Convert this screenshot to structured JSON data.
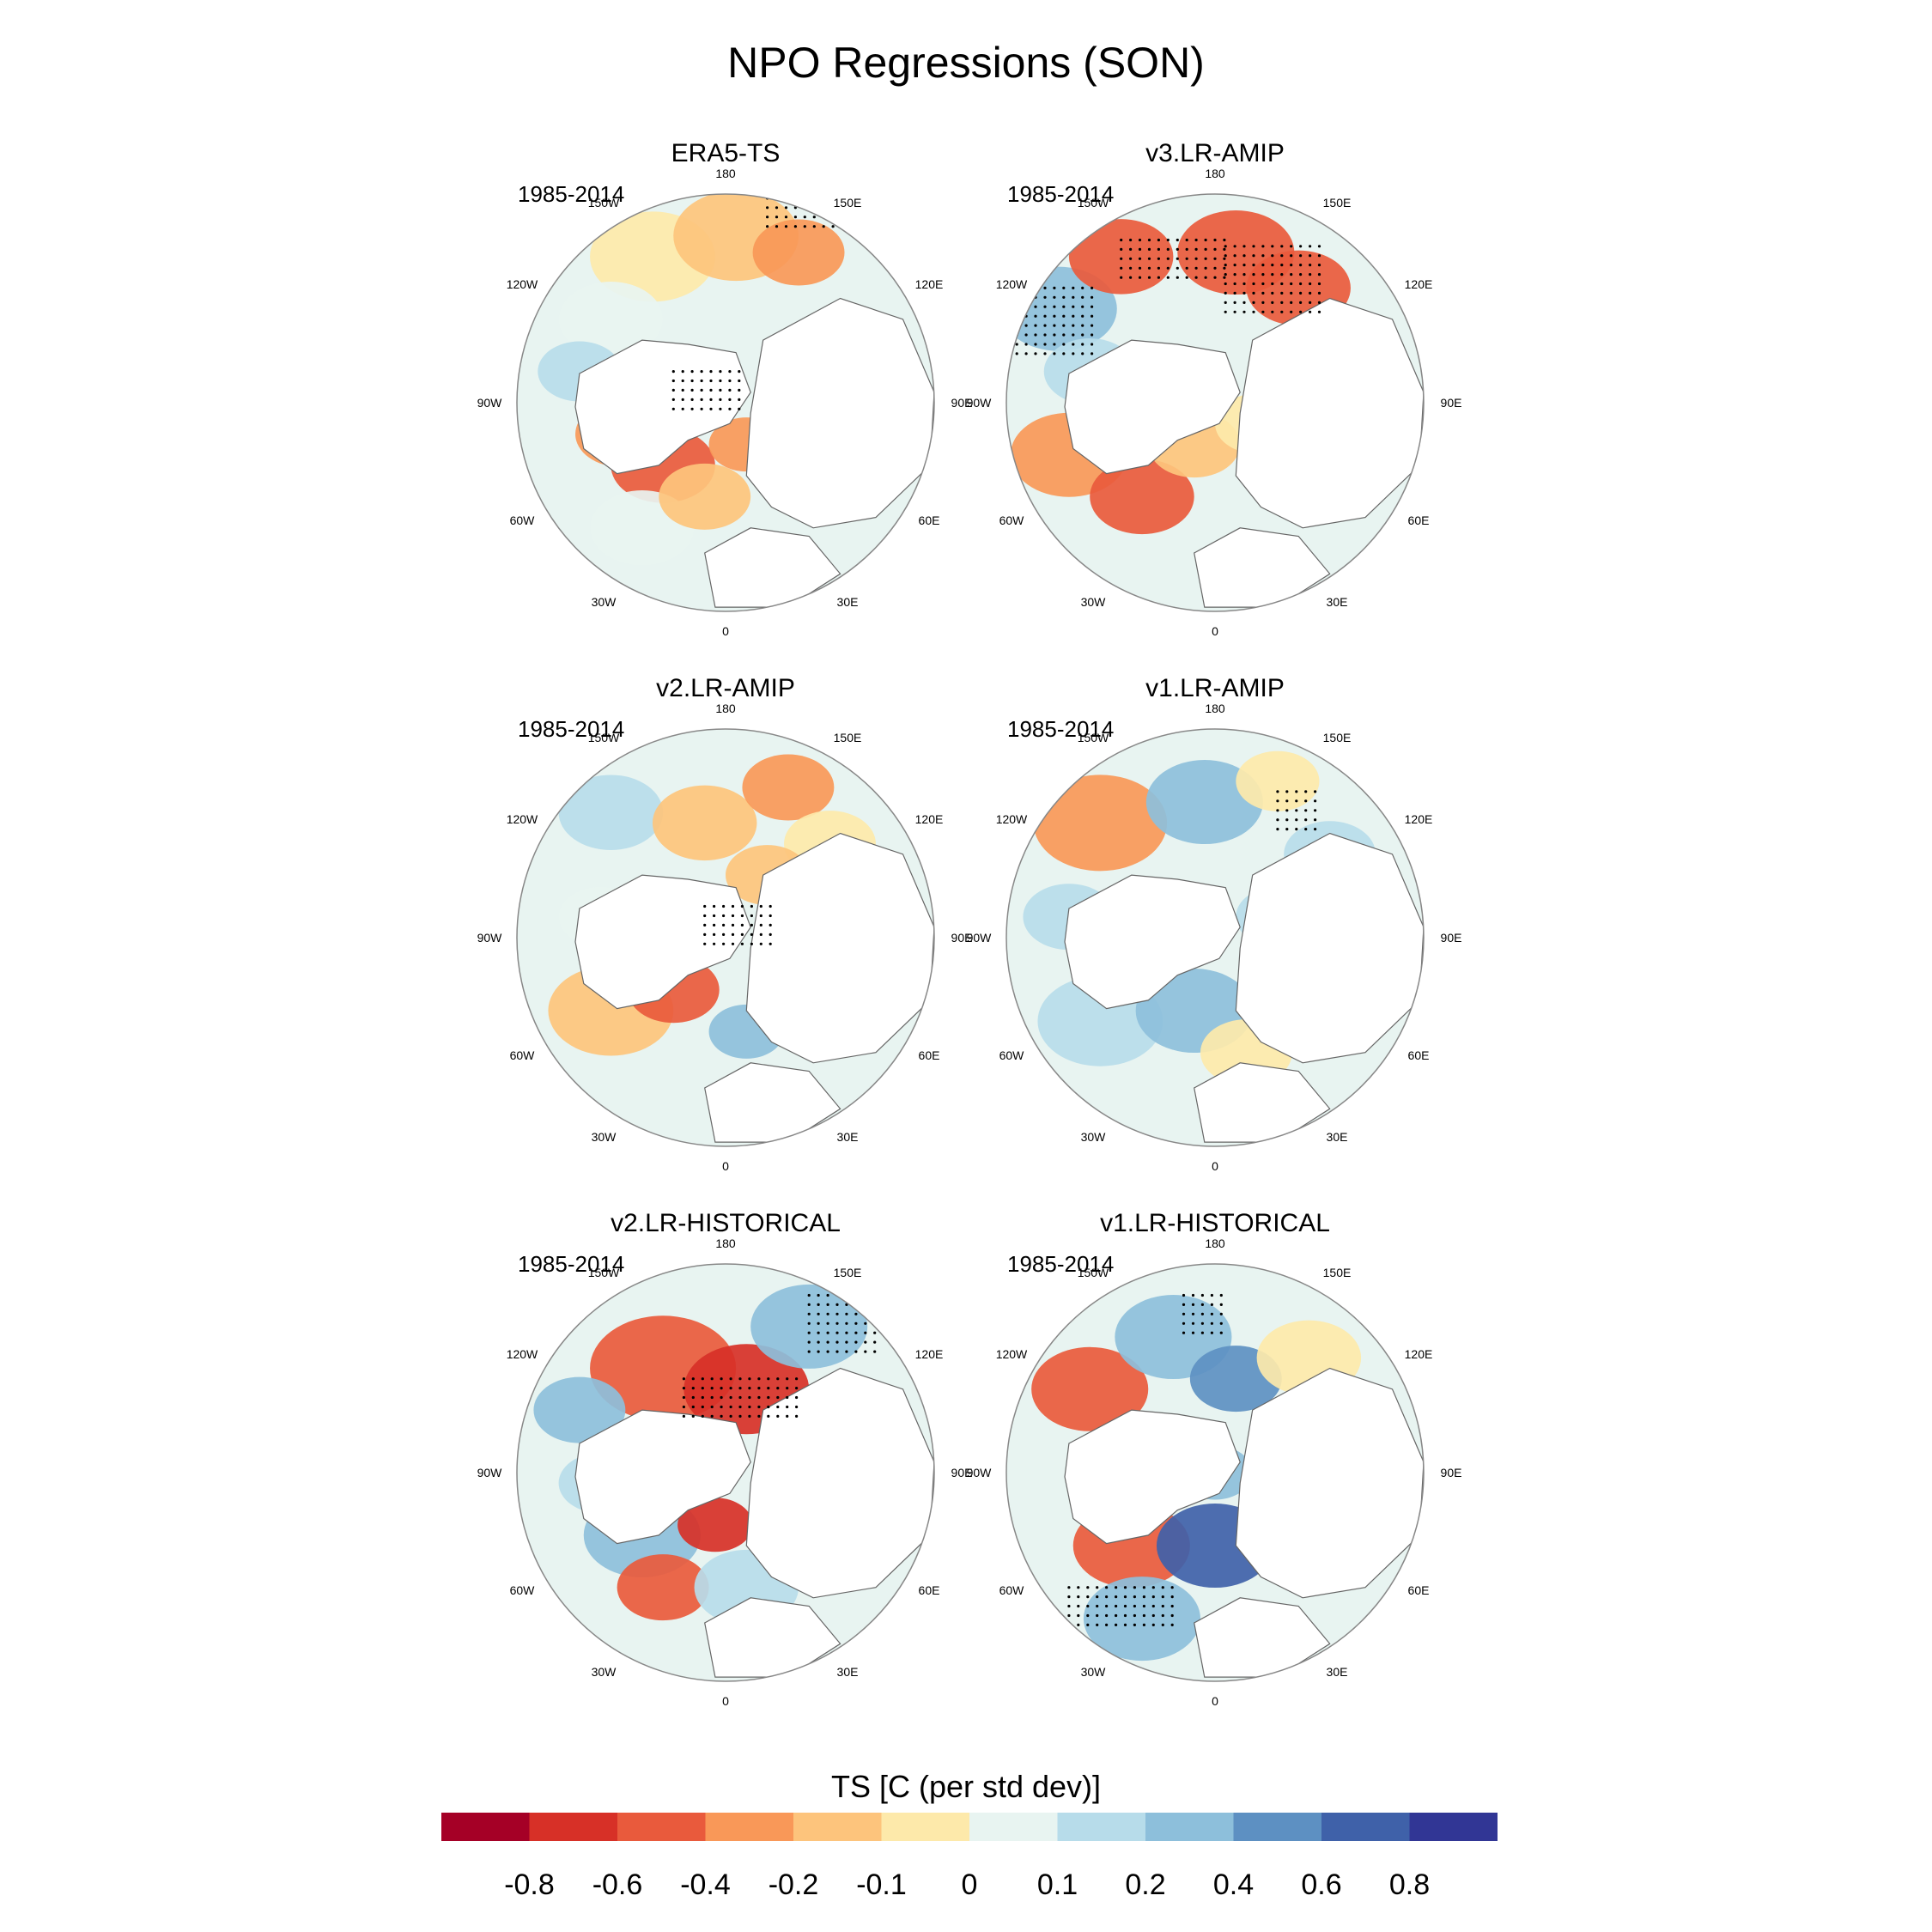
{
  "figure": {
    "title": "NPO Regressions (SON)"
  },
  "panels": [
    {
      "title": "ERA5-TS",
      "period": "1985-2014"
    },
    {
      "title": "v3.LR-AMIP",
      "period": "1985-2014"
    },
    {
      "title": "v2.LR-AMIP",
      "period": "1985-2014"
    },
    {
      "title": "v1.LR-AMIP",
      "period": "1985-2014"
    },
    {
      "title": "v2.LR-HISTORICAL",
      "period": "1985-2014"
    },
    {
      "title": "v1.LR-HISTORICAL",
      "period": "1985-2014"
    }
  ],
  "longitude_labels": [
    "180",
    "150E",
    "120E",
    "90E",
    "60E",
    "30E",
    "0",
    "30W",
    "60W",
    "90W",
    "120W",
    "150W"
  ],
  "colorbar": {
    "title": "TS [C (per std dev)]",
    "ticks": [
      "-0.8",
      "-0.6",
      "-0.4",
      "-0.2",
      "-0.1",
      "0",
      "0.1",
      "0.2",
      "0.4",
      "0.6",
      "0.8"
    ],
    "colors": [
      "#a50026",
      "#d73027",
      "#e95a3c",
      "#f99858",
      "#fdc47c",
      "#fde9aa",
      "#e8f4f1",
      "#b7dcea",
      "#8dbfdb",
      "#5d90c2",
      "#3f61a9",
      "#313695"
    ]
  },
  "map_colors": {
    "land_mask": "#ffffff",
    "coastline": "#666666",
    "border": "#888888"
  }
}
